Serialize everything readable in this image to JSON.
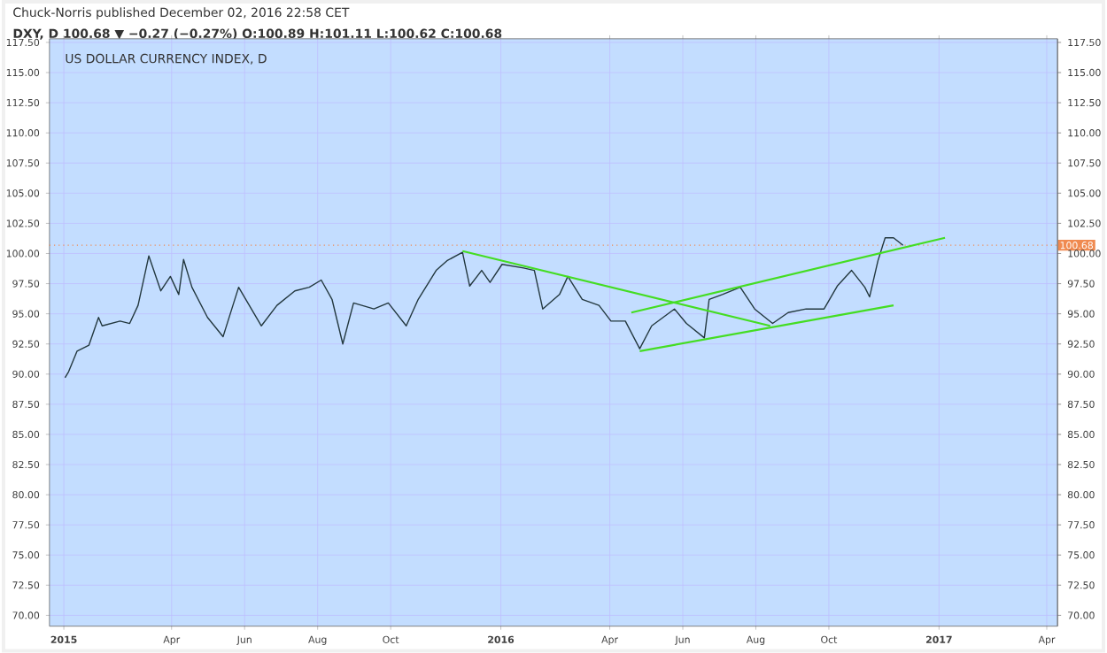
{
  "chart_data": {
    "type": "line",
    "title": "US DOLLAR CURRENCY INDEX, D",
    "annotations": [
      "Chuck-Norris published December 02, 2016 22:58 CET",
      "DXY, D 100.68 ▼ −0.27 (−0.27%) O:100.89 H:101.11 L:100.62 C:100.68"
    ],
    "xlim": [
      "2014-12-20",
      "2017-04-10"
    ],
    "xticks": [
      {
        "value": "2015-01-01",
        "label": "2015"
      },
      {
        "value": "2015-04-01",
        "label": "Apr"
      },
      {
        "value": "2015-06-01",
        "label": "Jun"
      },
      {
        "value": "2015-08-01",
        "label": "Aug"
      },
      {
        "value": "2015-10-01",
        "label": "Oct"
      },
      {
        "value": "2016-01-01",
        "label": "2016"
      },
      {
        "value": "2016-04-01",
        "label": "Apr"
      },
      {
        "value": "2016-06-01",
        "label": "Jun"
      },
      {
        "value": "2016-08-01",
        "label": "Aug"
      },
      {
        "value": "2016-10-01",
        "label": "Oct"
      },
      {
        "value": "2017-01-01",
        "label": "2017"
      },
      {
        "value": "2017-04-01",
        "label": "Apr"
      }
    ],
    "ylim": [
      69.1,
      117.8
    ],
    "yticks": [
      {
        "value": 70,
        "label": "70.00"
      },
      {
        "value": 72.5,
        "label": "72.50"
      },
      {
        "value": 75,
        "label": "75.00"
      },
      {
        "value": 77.5,
        "label": "77.50"
      },
      {
        "value": 80,
        "label": "80.00"
      },
      {
        "value": 82.5,
        "label": "82.50"
      },
      {
        "value": 85,
        "label": "85.00"
      },
      {
        "value": 87.5,
        "label": "87.50"
      },
      {
        "value": 90,
        "label": "90.00"
      },
      {
        "value": 92.5,
        "label": "92.50"
      },
      {
        "value": 95,
        "label": "95.00"
      },
      {
        "value": 97.5,
        "label": "97.50"
      },
      {
        "value": 100,
        "label": "100.00"
      },
      {
        "value": 102.5,
        "label": "102.50"
      },
      {
        "value": 105,
        "label": "105.00"
      },
      {
        "value": 107.5,
        "label": "107.50"
      },
      {
        "value": 110,
        "label": "110.00"
      },
      {
        "value": 112.5,
        "label": "112.50"
      },
      {
        "value": 115,
        "label": "115.00"
      },
      {
        "value": 117.5,
        "label": "117.50"
      }
    ],
    "y2lim": [
      69.1,
      117.8
    ],
    "y2ticks": [
      {
        "value": 70,
        "label": "70.00"
      },
      {
        "value": 72.5,
        "label": "72.50"
      },
      {
        "value": 75,
        "label": "75.00"
      },
      {
        "value": 77.5,
        "label": "77.50"
      },
      {
        "value": 80,
        "label": "80.00"
      },
      {
        "value": 82.5,
        "label": "82.50"
      },
      {
        "value": 85,
        "label": "85.00"
      },
      {
        "value": 87.5,
        "label": "87.50"
      },
      {
        "value": 90,
        "label": "90.00"
      },
      {
        "value": 92.5,
        "label": "92.50"
      },
      {
        "value": 95,
        "label": "95.00"
      },
      {
        "value": 97.5,
        "label": "97.50"
      },
      {
        "value": 100,
        "label": "100.00"
      },
      {
        "value": 102.5,
        "label": "102.50"
      },
      {
        "value": 105,
        "label": "105.00"
      },
      {
        "value": 107.5,
        "label": "107.50"
      },
      {
        "value": 110,
        "label": "110.00"
      },
      {
        "value": 112.5,
        "label": "112.50"
      },
      {
        "value": 115,
        "label": "115.00"
      },
      {
        "value": 117.5,
        "label": "117.50"
      }
    ],
    "grid": true,
    "ref_lines": [
      {
        "axis": "y",
        "value": 100.68,
        "label": "100.68",
        "color": "#f08a50",
        "line_style": "dotted"
      }
    ],
    "series": [
      {
        "color": "#23383f",
        "x": [
          "2015-01-02",
          "2015-01-05",
          "2015-01-12",
          "2015-01-22",
          "2015-01-30",
          "2015-02-02",
          "2015-02-17",
          "2015-02-25",
          "2015-03-04",
          "2015-03-13",
          "2015-03-23",
          "2015-03-31",
          "2015-04-07",
          "2015-04-11",
          "2015-04-18",
          "2015-05-01",
          "2015-05-14",
          "2015-05-27",
          "2015-06-15",
          "2015-06-28",
          "2015-07-13",
          "2015-07-25",
          "2015-08-04",
          "2015-08-13",
          "2015-08-22",
          "2015-08-31",
          "2015-09-17",
          "2015-09-29",
          "2015-10-14",
          "2015-10-24",
          "2015-11-08",
          "2015-11-17",
          "2015-11-30",
          "2015-12-06",
          "2015-12-16",
          "2015-12-23",
          "2016-01-02",
          "2016-01-20",
          "2016-01-29",
          "2016-02-05",
          "2016-02-19",
          "2016-02-26",
          "2016-03-09",
          "2016-03-23",
          "2016-04-02",
          "2016-04-14",
          "2016-04-26",
          "2016-05-06",
          "2016-05-25",
          "2016-06-04",
          "2016-06-19",
          "2016-06-23",
          "2016-07-04",
          "2016-07-19",
          "2016-07-31",
          "2016-08-15",
          "2016-08-28",
          "2016-09-12",
          "2016-09-27",
          "2016-10-08",
          "2016-10-20",
          "2016-10-31",
          "2016-11-04",
          "2016-11-11",
          "2016-11-17",
          "2016-11-24",
          "2016-12-02"
        ],
        "values": [
          89.7,
          90.2,
          91.9,
          92.4,
          94.7,
          94.0,
          94.4,
          94.2,
          95.7,
          99.8,
          96.9,
          98.1,
          96.6,
          99.5,
          97.2,
          94.7,
          93.1,
          97.2,
          94.0,
          95.7,
          96.9,
          97.2,
          97.8,
          96.2,
          92.5,
          95.9,
          95.4,
          95.9,
          94.0,
          96.2,
          98.6,
          99.4,
          100.1,
          97.3,
          98.6,
          97.6,
          99.1,
          98.8,
          98.6,
          95.4,
          96.6,
          98.1,
          96.2,
          95.7,
          94.4,
          94.4,
          92.1,
          94.0,
          95.4,
          94.2,
          93.0,
          96.2,
          96.6,
          97.2,
          95.4,
          94.2,
          95.1,
          95.4,
          95.4,
          97.3,
          98.6,
          97.2,
          96.4,
          99.4,
          101.3,
          101.3,
          100.68
        ]
      },
      {
        "color": "#44dd22",
        "x": [
          "2015-11-30",
          "2016-08-13"
        ],
        "values": [
          100.2,
          94.0
        ]
      },
      {
        "color": "#44dd22",
        "x": [
          "2016-04-26",
          "2016-11-24"
        ],
        "values": [
          91.9,
          95.7
        ]
      },
      {
        "color": "#44dd22",
        "x": [
          "2016-04-19",
          "2017-01-06"
        ],
        "values": [
          95.1,
          101.3
        ]
      }
    ]
  }
}
